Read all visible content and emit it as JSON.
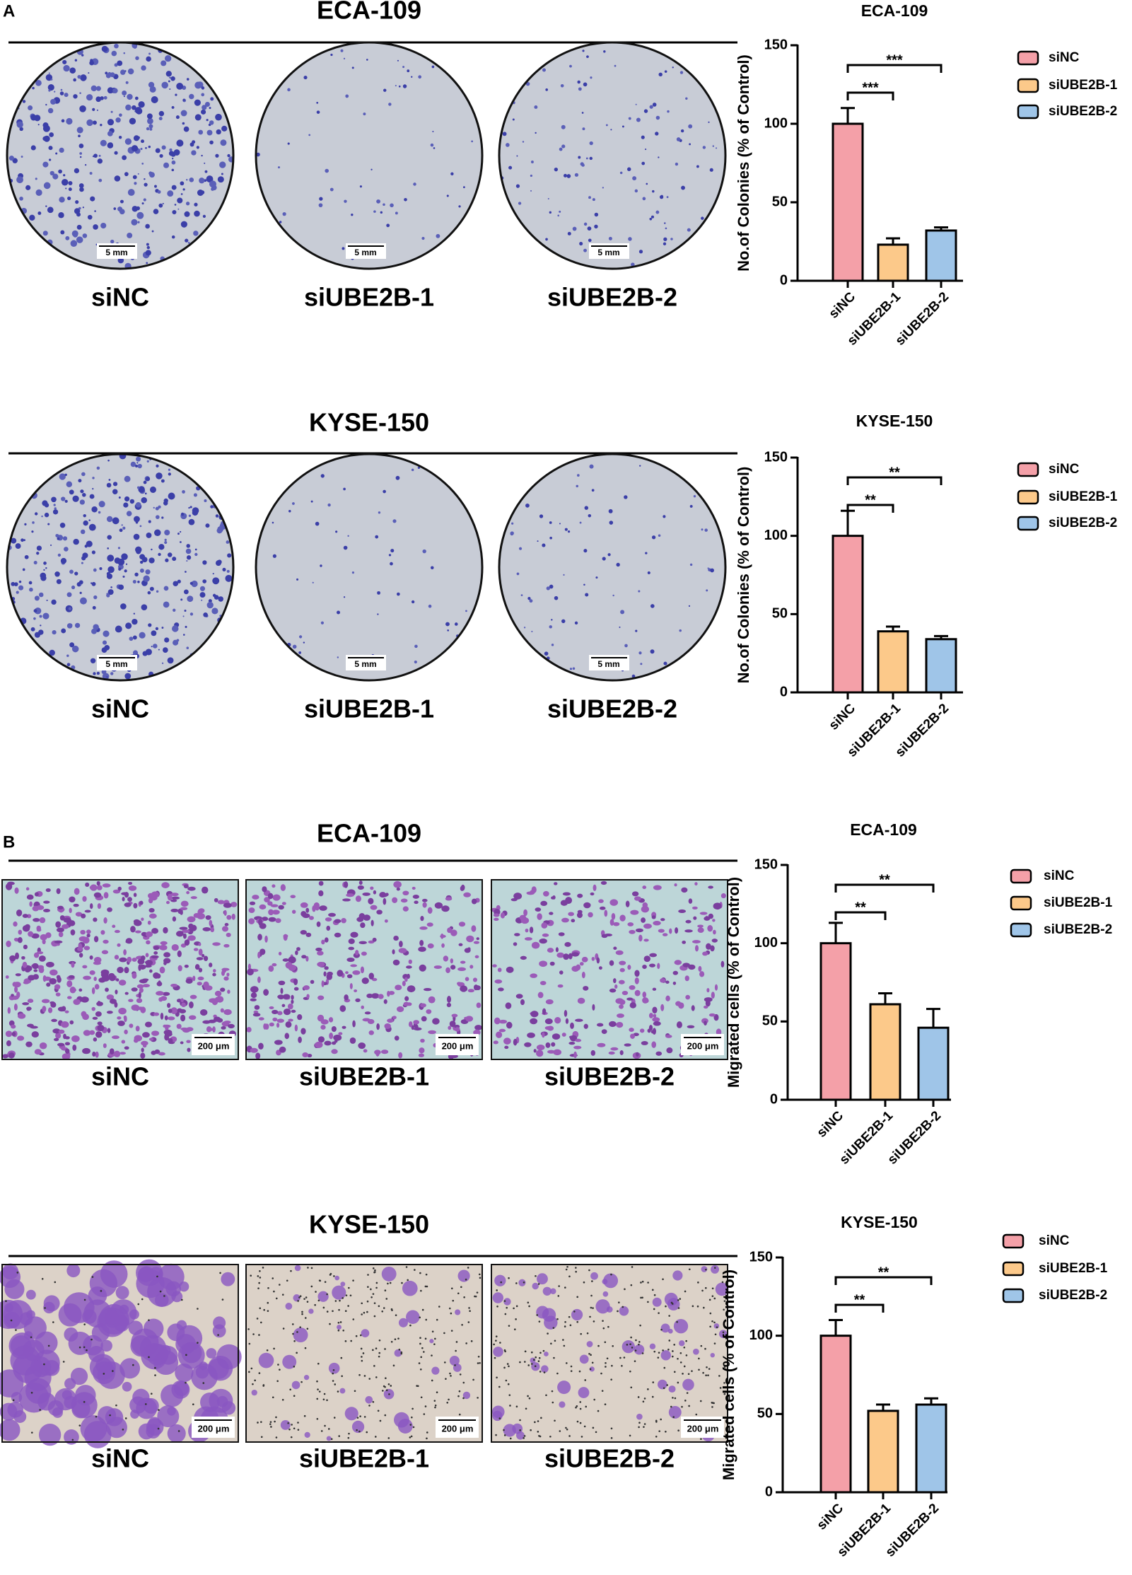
{
  "panel_labels": [
    "A",
    "B"
  ],
  "rows": [
    {
      "title": "ECA-109",
      "images": [
        "siNC",
        "siUBE2B-1",
        "siUBE2B-2"
      ],
      "scale_bar": "5 mm"
    },
    {
      "title": "KYSE-150",
      "images": [
        "siNC",
        "siUBE2B-1",
        "siUBE2B-2"
      ],
      "scale_bar": "5 mm"
    },
    {
      "title": "ECA-109",
      "images": [
        "siNC",
        "siUBE2B-1",
        "siUBE2B-2"
      ],
      "scale_bar": "200 μm"
    },
    {
      "title": "KYSE-150",
      "images": [
        "siNC",
        "siUBE2B-1",
        "siUBE2B-2"
      ],
      "scale_bar": "200 μm"
    }
  ],
  "chart_data": [
    {
      "type": "bar",
      "title": "ECA-109",
      "y_label": "No.of Colonies (% of Control)",
      "categories": [
        "siNC",
        "siUBE2B-1",
        "siUBE2B-2"
      ],
      "values": [
        100,
        23,
        32
      ],
      "errors": [
        10,
        4,
        2
      ],
      "colors": [
        "#f4a0a8",
        "#fcc98a",
        "#9fc5e8"
      ],
      "ylim": [
        0,
        150
      ],
      "yticks": [
        0,
        50,
        100,
        150
      ],
      "legend": "right",
      "comparisons": [
        {
          "pair": [
            "siNC",
            "siUBE2B-1"
          ],
          "label": "***"
        },
        {
          "pair": [
            "siNC",
            "siUBE2B-2"
          ],
          "label": "***"
        }
      ]
    },
    {
      "type": "bar",
      "title": "KYSE-150",
      "y_label": "No.of Colonies (% of Control)",
      "categories": [
        "siNC",
        "siUBE2B-1",
        "siUBE2B-2"
      ],
      "values": [
        100,
        39,
        34
      ],
      "errors": [
        16,
        3,
        2
      ],
      "colors": [
        "#f4a0a8",
        "#fcc98a",
        "#9fc5e8"
      ],
      "ylim": [
        0,
        150
      ],
      "yticks": [
        0,
        50,
        100,
        150
      ],
      "legend": "right",
      "comparisons": [
        {
          "pair": [
            "siNC",
            "siUBE2B-1"
          ],
          "label": "**"
        },
        {
          "pair": [
            "siNC",
            "siUBE2B-2"
          ],
          "label": "**"
        }
      ]
    },
    {
      "type": "bar",
      "title": "ECA-109",
      "y_label": "Migrated cells (% of Control)",
      "categories": [
        "siNC",
        "siUBE2B-1",
        "siUBE2B-2"
      ],
      "values": [
        100,
        61,
        46
      ],
      "errors": [
        13,
        7,
        12
      ],
      "colors": [
        "#f4a0a8",
        "#fcc98a",
        "#9fc5e8"
      ],
      "ylim": [
        0,
        150
      ],
      "yticks": [
        0,
        50,
        100,
        150
      ],
      "legend": "right",
      "comparisons": [
        {
          "pair": [
            "siNC",
            "siUBE2B-1"
          ],
          "label": "**"
        },
        {
          "pair": [
            "siNC",
            "siUBE2B-2"
          ],
          "label": "**"
        }
      ]
    },
    {
      "type": "bar",
      "title": "KYSE-150",
      "y_label": "Migrated cells (% of Control)",
      "categories": [
        "siNC",
        "siUBE2B-1",
        "siUBE2B-2"
      ],
      "values": [
        100,
        52,
        56
      ],
      "errors": [
        10,
        4,
        4
      ],
      "colors": [
        "#f4a0a8",
        "#fcc98a",
        "#9fc5e8"
      ],
      "ylim": [
        0,
        150
      ],
      "yticks": [
        0,
        50,
        100,
        150
      ],
      "legend": "right",
      "comparisons": [
        {
          "pair": [
            "siNC",
            "siUBE2B-1"
          ],
          "label": "**"
        },
        {
          "pair": [
            "siNC",
            "siUBE2B-2"
          ],
          "label": "**"
        }
      ]
    }
  ]
}
